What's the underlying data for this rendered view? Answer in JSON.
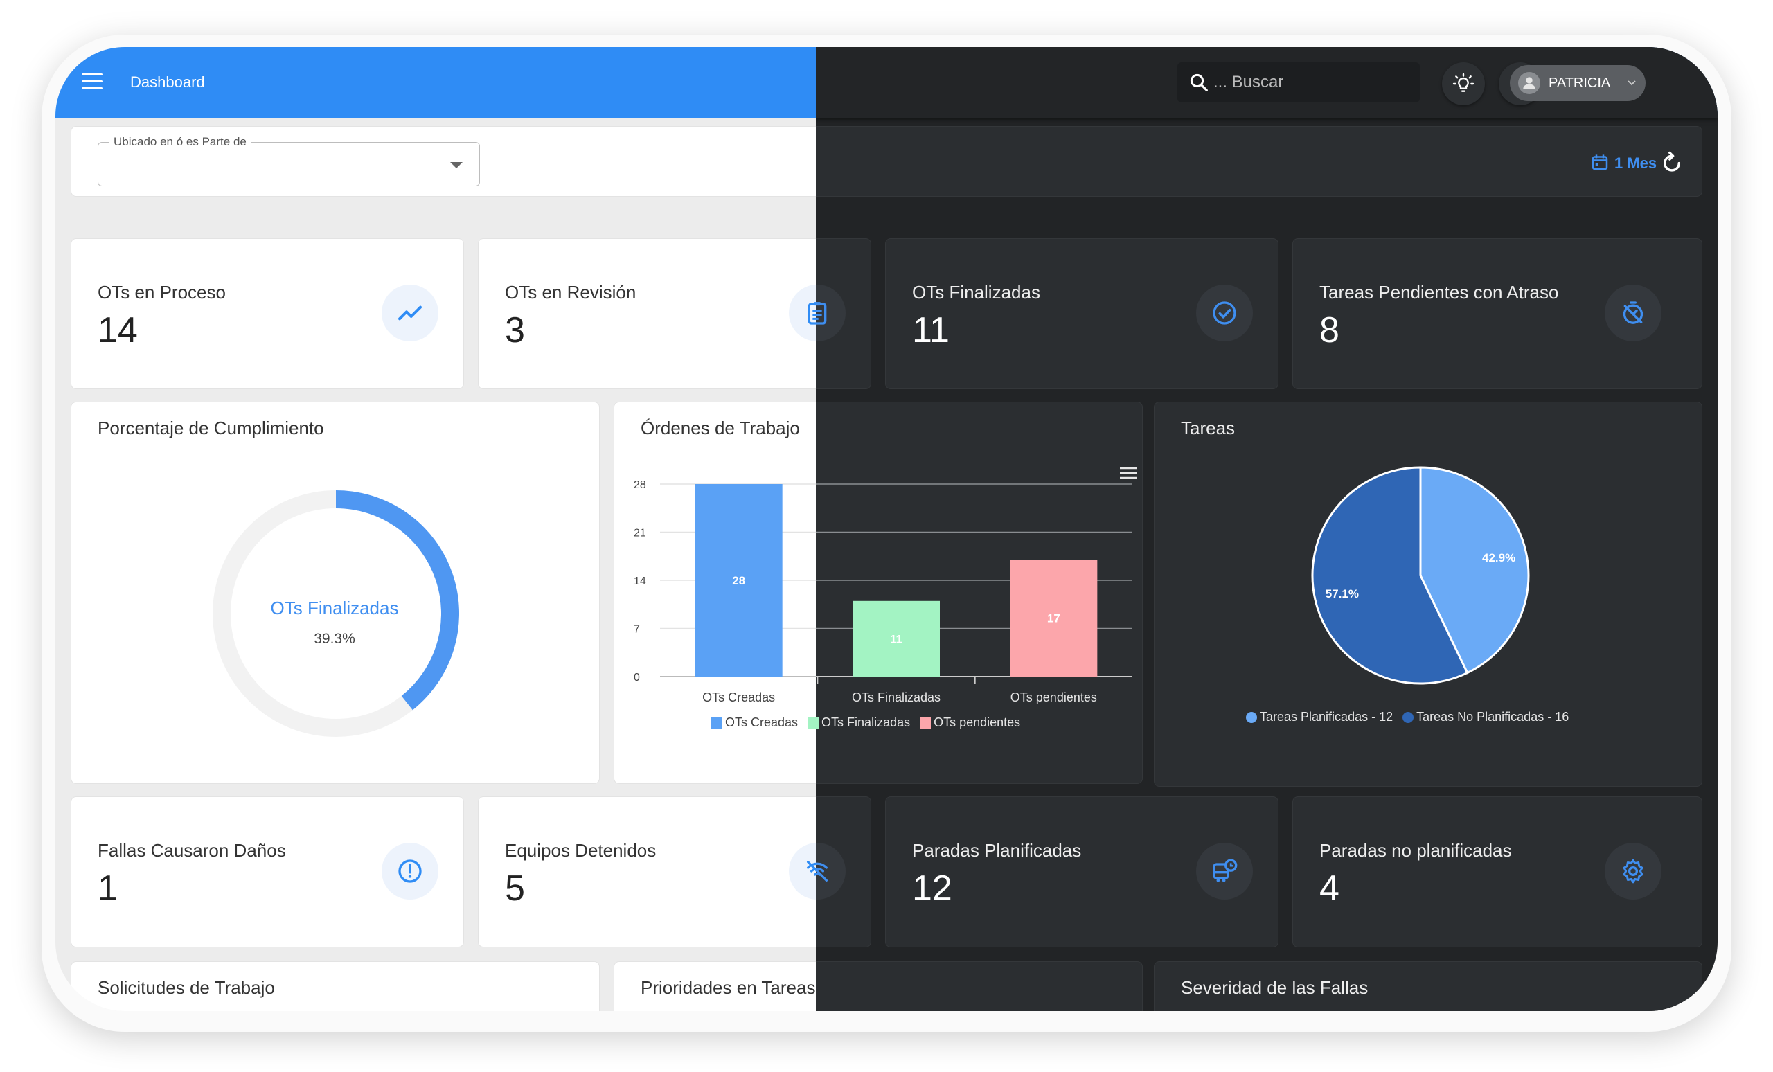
{
  "header": {
    "title": "Dashboard",
    "search_placeholder": "... Buscar",
    "user_name": "PATRICIA"
  },
  "filter": {
    "label": "Ubicado en ó es Parte de",
    "value": "",
    "period": "1 Mes"
  },
  "stats_top": [
    {
      "label": "OTs en Proceso",
      "value": "14",
      "icon": "trend-up-icon"
    },
    {
      "label": "OTs en Revisión",
      "value": "3",
      "icon": "clipboard-icon"
    },
    {
      "label": "OTs Finalizadas",
      "value": "11",
      "icon": "check-circle-icon"
    },
    {
      "label": "Tareas Pendientes con Atraso",
      "value": "8",
      "icon": "timer-off-icon"
    }
  ],
  "stats_bottom": [
    {
      "label": "Fallas Causaron Daños",
      "value": "1",
      "icon": "alert-circle-icon"
    },
    {
      "label": "Equipos Detenidos",
      "value": "5",
      "icon": "signal-off-icon"
    },
    {
      "label": "Paradas Planificadas",
      "value": "12",
      "icon": "bus-clock-icon"
    },
    {
      "label": "Paradas no planificadas",
      "value": "4",
      "icon": "gear-icon"
    }
  ],
  "panels": {
    "cumplimiento_title": "Porcentaje de Cumplimiento",
    "ordenes_title": "Órdenes de Trabajo",
    "tareas_title": "Tareas",
    "solicitudes_title": "Solicitudes de Trabajo",
    "prioridades_title": "Prioridades en Tareas",
    "severidad_title": "Severidad de las Fallas"
  },
  "colors": {
    "accent": "#2f8cf5",
    "bar_creadas": "#5aa1f5",
    "bar_finalizadas": "#a3f3c3",
    "bar_pendientes": "#fca6ab",
    "pie_planificadas": "#6aaaf6",
    "pie_no_planificadas": "#2f66b5",
    "dark_bg": "#232527"
  },
  "chart_data": [
    {
      "type": "pie",
      "variant": "donut",
      "center_label": "OTs Finalizadas",
      "center_value": "39.3%",
      "value": 39.3
    },
    {
      "type": "bar",
      "categories": [
        "OTs Creadas",
        "OTs Finalizadas",
        "OTs pendientes"
      ],
      "values": [
        28,
        11,
        17
      ],
      "data_labels": [
        "28",
        "11",
        "17"
      ],
      "yticks": [
        "0",
        "7",
        "14",
        "21",
        "28"
      ],
      "ylim": [
        0,
        28
      ],
      "legend": [
        "OTs Creadas",
        "OTs Finalizadas",
        "OTs pendientes"
      ],
      "legend_position": "bottom",
      "grid": true
    },
    {
      "type": "pie",
      "slices": [
        {
          "label": "Tareas Planificadas - 12",
          "value": 12,
          "pct_label": "42.9%"
        },
        {
          "label": "Tareas No Planificadas - 16",
          "value": 16,
          "pct_label": "57.1%"
        }
      ],
      "legend_position": "bottom"
    }
  ]
}
